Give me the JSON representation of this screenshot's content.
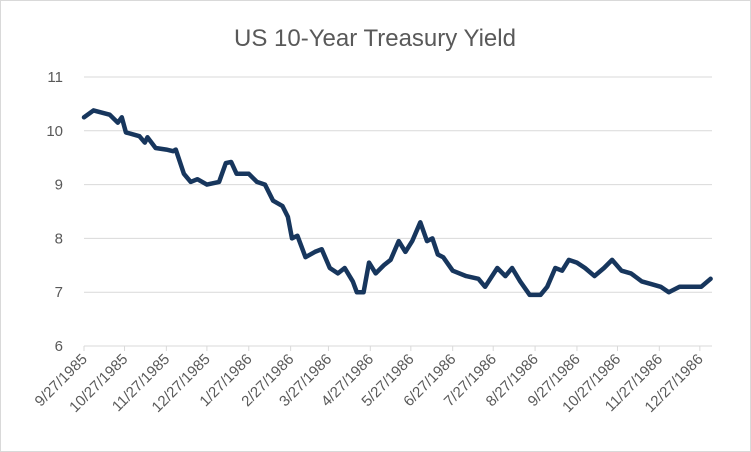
{
  "chart_data": {
    "type": "line",
    "title": "US 10-Year Treasury Yield",
    "color": "#17365d",
    "grid": true,
    "ylim": [
      6,
      11
    ],
    "yticks": [
      6,
      7,
      8,
      9,
      10,
      11
    ],
    "xlim": [
      "9/27/1985",
      "1/5/1987"
    ],
    "xticks": [
      "9/27/1985",
      "10/27/1985",
      "11/27/1985",
      "12/27/1985",
      "1/27/1986",
      "2/27/1986",
      "3/27/1986",
      "4/27/1986",
      "5/27/1986",
      "6/27/1986",
      "7/27/1986",
      "8/27/1986",
      "9/27/1986",
      "10/27/1986",
      "11/27/1986",
      "12/27/1986"
    ],
    "x": [
      "9/27/1985",
      "10/4/1985",
      "10/16/1985",
      "10/22/1985",
      "10/25/1985",
      "10/28/1985",
      "11/7/1985",
      "11/11/1985",
      "11/13/1985",
      "11/19/1985",
      "11/27/1985",
      "12/2/1985",
      "12/4/1985",
      "12/10/1985",
      "12/15/1985",
      "12/20/1985",
      "12/27/1985",
      "1/5/1986",
      "1/10/1986",
      "1/14/1986",
      "1/18/1986",
      "1/27/1986",
      "2/2/1986",
      "2/8/1986",
      "2/14/1986",
      "2/21/1986",
      "2/25/1986",
      "2/28/1986",
      "3/4/1986",
      "3/10/1986",
      "3/17/1986",
      "3/22/1986",
      "3/28/1986",
      "4/3/1986",
      "4/8/1986",
      "4/14/1986",
      "4/17/1986",
      "4/22/1986",
      "4/26/1986",
      "5/1/1986",
      "5/7/1986",
      "5/12/1986",
      "5/18/1986",
      "5/23/1986",
      "5/28/1986",
      "6/3/1986",
      "6/8/1986",
      "6/12/1986",
      "6/16/1986",
      "6/20/1986",
      "6/27/1986",
      "7/7/1986",
      "7/16/1986",
      "7/21/1986",
      "7/30/1986",
      "8/5/1986",
      "8/10/1986",
      "8/16/1986",
      "8/23/1986",
      "8/31/1986",
      "9/5/1986",
      "9/11/1986",
      "9/16/1986",
      "9/21/1986",
      "9/27/1986",
      "10/3/1986",
      "10/10/1986",
      "10/17/1986",
      "10/23/1986",
      "10/30/1986",
      "11/6/1986",
      "11/14/1986",
      "11/21/1986",
      "11/28/1986",
      "12/4/1986",
      "12/12/1986",
      "12/21/1986",
      "12/28/1986",
      "1/4/1987"
    ],
    "values": [
      10.25,
      10.38,
      10.3,
      10.15,
      10.25,
      9.97,
      9.9,
      9.78,
      9.88,
      9.68,
      9.65,
      9.62,
      9.65,
      9.2,
      9.05,
      9.1,
      9.0,
      9.05,
      9.4,
      9.42,
      9.2,
      9.2,
      9.05,
      9.0,
      8.7,
      8.6,
      8.4,
      8.0,
      8.05,
      7.65,
      7.75,
      7.8,
      7.45,
      7.35,
      7.45,
      7.2,
      7.0,
      7.0,
      7.55,
      7.35,
      7.5,
      7.6,
      7.95,
      7.75,
      7.95,
      8.3,
      7.95,
      8.0,
      7.7,
      7.65,
      7.4,
      7.3,
      7.25,
      7.1,
      7.45,
      7.3,
      7.45,
      7.2,
      6.95,
      6.95,
      7.1,
      7.45,
      7.4,
      7.6,
      7.55,
      7.45,
      7.3,
      7.45,
      7.6,
      7.4,
      7.35,
      7.2,
      7.15,
      7.1,
      7.0,
      7.1,
      7.1,
      7.1,
      7.25
    ]
  }
}
